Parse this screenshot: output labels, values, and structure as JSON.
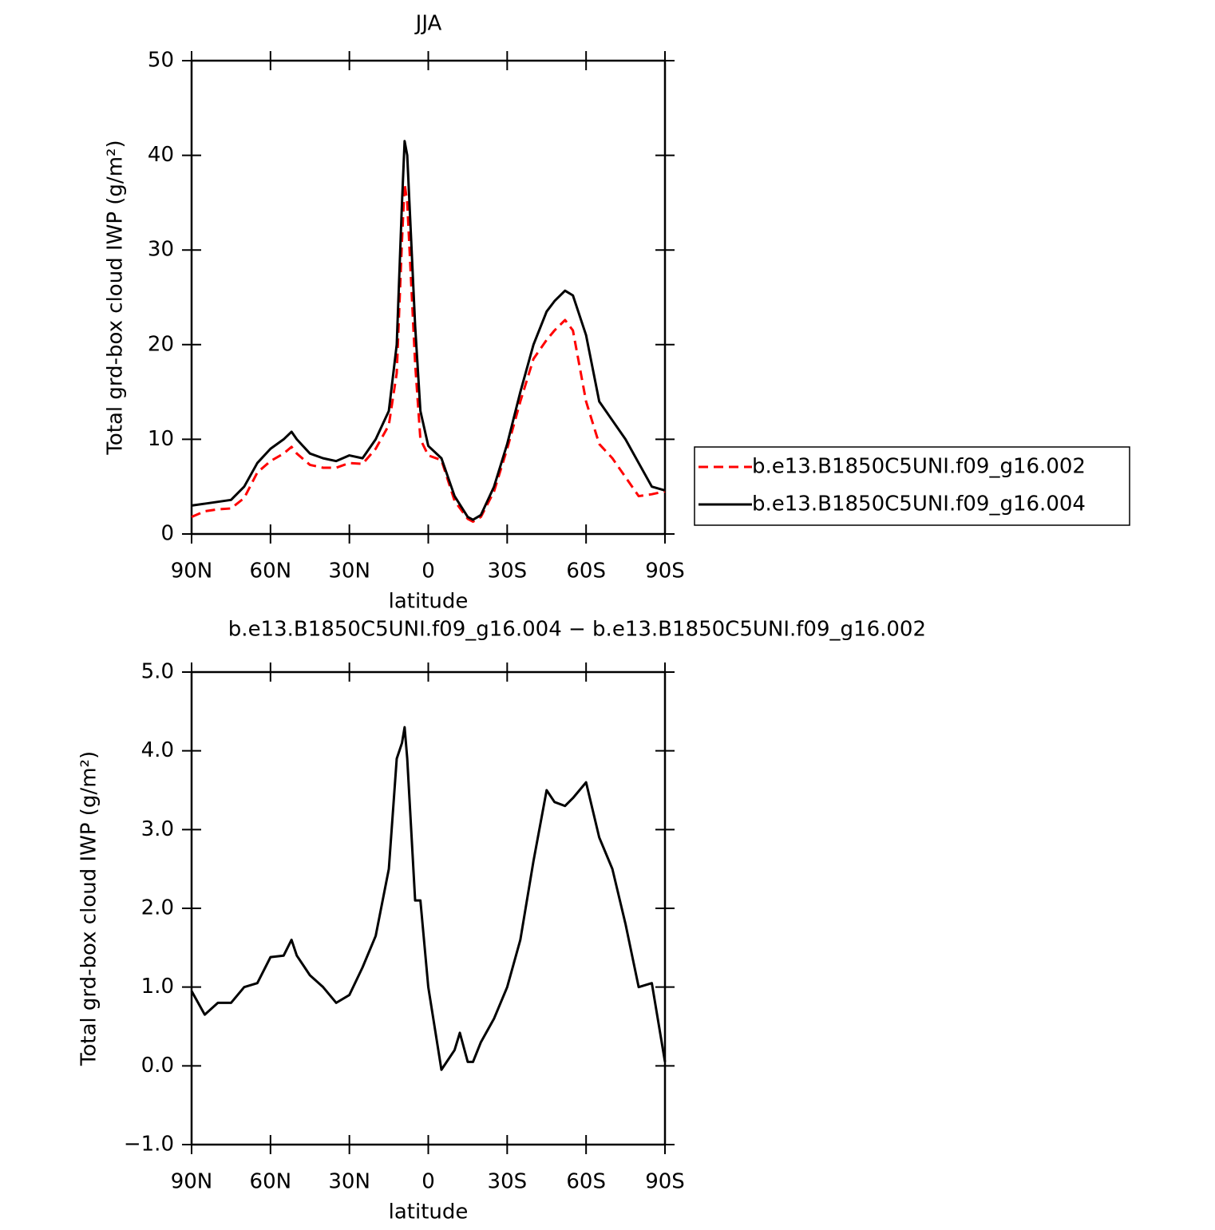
{
  "chart_data": [
    {
      "type": "line",
      "title": "JJA",
      "x_label": "latitude",
      "y_label": "Total grd-box cloud IWP (g/m²)",
      "x": [
        90,
        85,
        80,
        75,
        70,
        65,
        60,
        55,
        52,
        50,
        45,
        40,
        35,
        30,
        25,
        20,
        15,
        12,
        10,
        9,
        8,
        5,
        3,
        0,
        -5,
        -10,
        -15,
        -17,
        -20,
        -25,
        -30,
        -35,
        -40,
        -45,
        -48,
        -52,
        -55,
        -60,
        -65,
        -70,
        -75,
        -80,
        -85,
        -90
      ],
      "series": [
        {
          "name": "b.e13.B1850C5UNI.f09_g16.002",
          "color": "#ff0000",
          "linestyle": "dashed",
          "values": [
            1.8,
            2.4,
            2.6,
            2.7,
            3.8,
            6.5,
            7.7,
            8.5,
            9.2,
            8.5,
            7.3,
            7.0,
            7.0,
            7.5,
            7.4,
            9.0,
            11.5,
            17.0,
            31.0,
            37.0,
            35.0,
            18.0,
            10.0,
            8.3,
            7.8,
            3.5,
            1.6,
            1.3,
            1.8,
            4.5,
            9.0,
            14.0,
            18.5,
            20.5,
            21.5,
            22.6,
            21.5,
            14.0,
            9.5,
            8.0,
            6.0,
            4.0,
            4.2,
            4.5
          ]
        },
        {
          "name": "b.e13.B1850C5UNI.f09_g16.004",
          "color": "#000000",
          "linestyle": "solid",
          "values": [
            3.0,
            3.2,
            3.4,
            3.6,
            5.0,
            7.5,
            9.0,
            10.0,
            10.8,
            10.0,
            8.5,
            8.0,
            7.7,
            8.3,
            8.0,
            10.0,
            13.0,
            20.0,
            35.0,
            41.5,
            40.0,
            22.0,
            13.0,
            9.3,
            8.0,
            4.0,
            1.8,
            1.5,
            2.0,
            5.0,
            9.5,
            15.0,
            20.0,
            23.5,
            24.6,
            25.7,
            25.2,
            21.0,
            14.0,
            12.0,
            10.0,
            7.5,
            5.0,
            4.6
          ]
        }
      ],
      "xlim": [
        90,
        -90
      ],
      "xticks": [
        {
          "value": 90,
          "label": "90N"
        },
        {
          "value": 60,
          "label": "60N"
        },
        {
          "value": 30,
          "label": "30N"
        },
        0,
        {
          "value": -30,
          "label": "30S"
        },
        {
          "value": -60,
          "label": "60S"
        },
        {
          "value": -90,
          "label": "90S"
        }
      ],
      "ylim": [
        0,
        50
      ],
      "yticks": [
        0,
        10,
        20,
        30,
        40,
        50
      ],
      "legend": "outside-right"
    },
    {
      "type": "line",
      "title": "b.e13.B1850C5UNI.f09_g16.004 − b.e13.B1850C5UNI.f09_g16.002",
      "x_label": "latitude",
      "y_label": "Total grd-box cloud IWP (g/m²)",
      "x": [
        90,
        85,
        80,
        75,
        70,
        65,
        60,
        55,
        52,
        50,
        45,
        40,
        35,
        30,
        25,
        20,
        15,
        12,
        10,
        9,
        8,
        5,
        3,
        0,
        -5,
        -10,
        -12,
        -15,
        -17,
        -20,
        -25,
        -30,
        -35,
        -40,
        -45,
        -48,
        -52,
        -55,
        -60,
        -65,
        -70,
        -75,
        -80,
        -85,
        -90
      ],
      "values": [
        0.95,
        0.65,
        0.8,
        0.8,
        1.0,
        1.05,
        1.38,
        1.4,
        1.6,
        1.4,
        1.15,
        1.0,
        0.8,
        0.9,
        1.25,
        1.65,
        2.5,
        3.9,
        4.1,
        4.3,
        3.9,
        2.1,
        2.1,
        1.0,
        -0.05,
        0.2,
        0.42,
        0.05,
        0.05,
        0.3,
        0.6,
        1.0,
        1.6,
        2.6,
        3.5,
        3.35,
        3.3,
        3.4,
        3.6,
        2.9,
        2.5,
        1.8,
        1.0,
        1.05,
        0.05
      ],
      "color": "#000000",
      "linestyle": "solid",
      "xlim": [
        90,
        -90
      ],
      "xticks": [
        {
          "value": 90,
          "label": "90N"
        },
        {
          "value": 60,
          "label": "60N"
        },
        {
          "value": 30,
          "label": "30N"
        },
        0,
        {
          "value": -30,
          "label": "30S"
        },
        {
          "value": -60,
          "label": "60S"
        },
        {
          "value": -90,
          "label": "90S"
        }
      ],
      "ylim": [
        -1,
        5
      ],
      "yticks": [
        {
          "value": -1,
          "label": "−1.0"
        },
        {
          "value": 0,
          "label": "0.0"
        },
        {
          "value": 1,
          "label": "1.0"
        },
        {
          "value": 2,
          "label": "2.0"
        },
        {
          "value": 3,
          "label": "3.0"
        },
        {
          "value": 4,
          "label": "4.0"
        },
        {
          "value": 5,
          "label": "5.0"
        }
      ]
    }
  ]
}
